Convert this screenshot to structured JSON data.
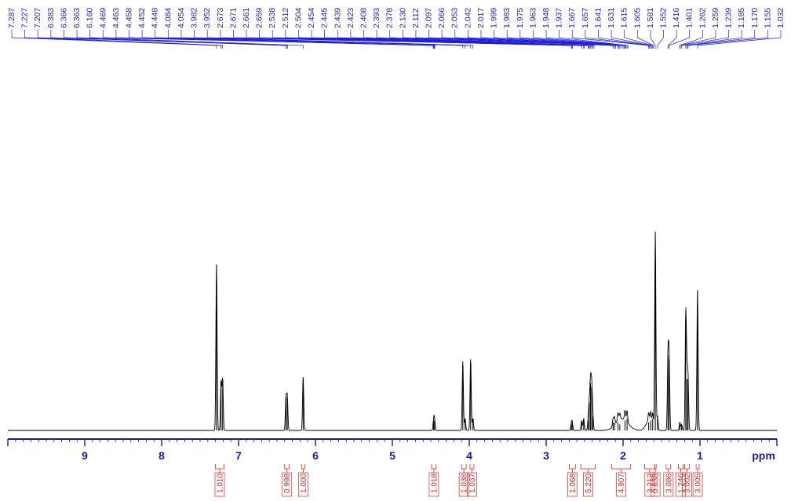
{
  "chart_data": {
    "type": "line",
    "x_unit_label": "ppm",
    "x_reversed": true,
    "xlim": [
      10.0,
      0.0
    ],
    "x_ticks": [
      9,
      8,
      7,
      6,
      5,
      4,
      3,
      2,
      1
    ],
    "peak_list": [
      "7.287",
      "7.227",
      "7.207",
      "6.383",
      "6.366",
      "6.363",
      "6.160",
      "4.469",
      "4.463",
      "4.458",
      "4.452",
      "4.448",
      "4.084",
      "4.054",
      "3.982",
      "3.952",
      "2.673",
      "2.671",
      "2.661",
      "2.659",
      "2.538",
      "2.512",
      "2.504",
      "2.454",
      "2.445",
      "2.439",
      "2.423",
      "2.408",
      "2.393",
      "2.378",
      "2.130",
      "2.112",
      "2.097",
      "2.066",
      "2.053",
      "2.042",
      "2.017",
      "1.999",
      "1.983",
      "1.975",
      "1.963",
      "1.948",
      "1.937",
      "1.667",
      "1.657",
      "1.641",
      "1.631",
      "1.615",
      "1.605",
      "1.581",
      "1.552",
      "1.416",
      "1.401",
      "1.262",
      "1.259",
      "1.239",
      "1.185",
      "1.170",
      "1.155",
      "1.032"
    ],
    "series": [
      {
        "peaks": [
          {
            "x": 7.287,
            "h": 0.84
          },
          {
            "x": 7.227,
            "h": 0.25
          },
          {
            "x": 7.207,
            "h": 0.26
          },
          {
            "x": 6.383,
            "h": 0.17
          },
          {
            "x": 6.366,
            "h": 0.17
          },
          {
            "x": 6.16,
            "h": 0.27
          },
          {
            "x": 4.463,
            "h": 0.05
          },
          {
            "x": 4.452,
            "h": 0.05
          },
          {
            "x": 4.084,
            "h": 0.35
          },
          {
            "x": 4.054,
            "h": 0.06
          },
          {
            "x": 3.982,
            "h": 0.36
          },
          {
            "x": 3.952,
            "h": 0.06
          },
          {
            "x": 2.673,
            "h": 0.03
          },
          {
            "x": 2.661,
            "h": 0.04
          },
          {
            "x": 2.538,
            "h": 0.05
          },
          {
            "x": 2.512,
            "h": 0.06
          },
          {
            "x": 2.454,
            "h": 0.05
          },
          {
            "x": 2.439,
            "h": 0.14
          },
          {
            "x": 2.423,
            "h": 0.24
          },
          {
            "x": 2.408,
            "h": 0.22
          },
          {
            "x": 2.393,
            "h": 0.07
          },
          {
            "x": 2.13,
            "h": 0.04
          },
          {
            "x": 2.112,
            "h": 0.04
          },
          {
            "x": 2.066,
            "h": 0.04
          },
          {
            "x": 2.042,
            "h": 0.03
          },
          {
            "x": 1.975,
            "h": 0.05
          },
          {
            "x": 1.948,
            "h": 0.06
          },
          {
            "x": 1.667,
            "h": 0.04
          },
          {
            "x": 1.641,
            "h": 0.05
          },
          {
            "x": 1.615,
            "h": 0.06
          },
          {
            "x": 1.581,
            "h": 1.0
          },
          {
            "x": 1.552,
            "h": 0.07
          },
          {
            "x": 1.416,
            "h": 0.38
          },
          {
            "x": 1.401,
            "h": 0.36
          },
          {
            "x": 1.262,
            "h": 0.04
          },
          {
            "x": 1.239,
            "h": 0.03
          },
          {
            "x": 1.185,
            "h": 0.58
          },
          {
            "x": 1.17,
            "h": 0.26
          },
          {
            "x": 1.155,
            "h": 0.26
          },
          {
            "x": 1.032,
            "h": 0.71
          }
        ],
        "humps": [
          {
            "from": 2.18,
            "to": 1.85,
            "h": 0.06
          },
          {
            "from": 1.75,
            "to": 1.57,
            "h": 0.05
          }
        ]
      }
    ],
    "integrals": [
      {
        "from": 7.3,
        "to": 7.19,
        "value": "1.010"
      },
      {
        "from": 6.4,
        "to": 6.34,
        "value": "0.998"
      },
      {
        "from": 6.18,
        "to": 6.14,
        "value": "1.000"
      },
      {
        "from": 4.49,
        "to": 4.43,
        "value": "1.018"
      },
      {
        "from": 4.1,
        "to": 4.04,
        "value": "1.038"
      },
      {
        "from": 3.99,
        "to": 3.94,
        "value": "1.037"
      },
      {
        "from": 2.7,
        "to": 2.62,
        "value": "1.068"
      },
      {
        "from": 2.55,
        "to": 2.36,
        "value": "5.220"
      },
      {
        "from": 2.15,
        "to": 1.9,
        "value": "4.907"
      },
      {
        "from": 1.72,
        "to": 1.59,
        "value": "3.212"
      },
      {
        "from": 1.59,
        "to": 1.57,
        "value": "0.638"
      },
      {
        "from": 1.44,
        "to": 1.38,
        "value": "3.086"
      },
      {
        "from": 1.28,
        "to": 1.22,
        "value": "1.246"
      },
      {
        "from": 1.2,
        "to": 1.14,
        "value": "3.002"
      },
      {
        "from": 1.05,
        "to": 1.01,
        "value": "3.005"
      }
    ]
  },
  "colors": {
    "spectrum": "#000000",
    "peak_labels": "#1f1fd8",
    "axis": "#1a1aa8",
    "integrals": "#e0221f"
  }
}
